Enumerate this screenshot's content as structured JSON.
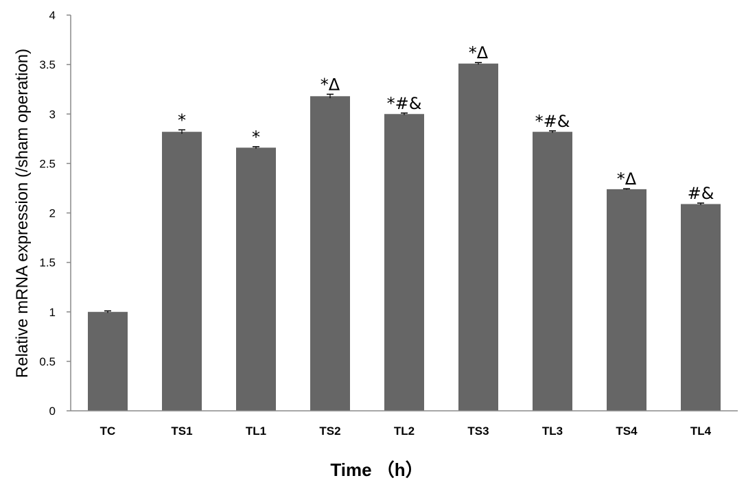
{
  "chart_data": {
    "type": "bar",
    "categories": [
      "TC",
      "TS1",
      "TL1",
      "TS2",
      "TL2",
      "TS3",
      "TL3",
      "TS4",
      "TL4"
    ],
    "values": [
      1.0,
      2.82,
      2.66,
      3.18,
      3.0,
      3.51,
      2.82,
      2.24,
      2.09
    ],
    "errors": [
      0.01,
      0.02,
      0.01,
      0.02,
      0.01,
      0.01,
      0.01,
      0.005,
      0.01
    ],
    "annotations": [
      "",
      "*",
      "*",
      "*Δ",
      "*#&",
      "*Δ",
      "*#&",
      "*Δ",
      "#&"
    ],
    "title": "",
    "xlabel": "Time （h）",
    "ylabel": "Relative mRNA expression (/sham operation)",
    "ylim": [
      0,
      4
    ],
    "yticks": [
      0,
      0.5,
      1,
      1.5,
      2,
      2.5,
      3,
      3.5,
      4
    ],
    "ytick_labels": [
      "0",
      "0.5",
      "1",
      "1.5",
      "2",
      "2.5",
      "3",
      "3.5",
      "4"
    ],
    "grid": false,
    "legend": "none",
    "bar_color": "#666666"
  }
}
